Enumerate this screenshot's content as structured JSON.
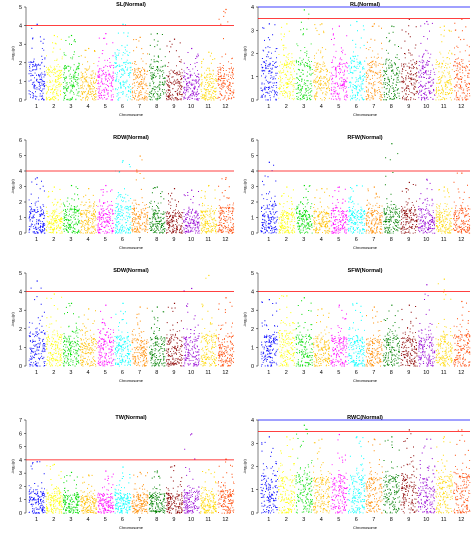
{
  "chromosome_colors": [
    "#0000ff",
    "#ffff00",
    "#00dd00",
    "#ffbf00",
    "#ff00ff",
    "#00ffff",
    "#ff8c00",
    "#008000",
    "#8b0000",
    "#9400d3",
    "#ffd700",
    "#ff4500"
  ],
  "threshold_color": "#ff0000",
  "suggestive_color": "#0000ff",
  "chart_data": [
    {
      "type": "scatter",
      "title": "SL(Normal)",
      "xlabel": "Chromosome",
      "ylabel": "-log₁₀(p)",
      "ylim": [
        0,
        5
      ],
      "yticks": [
        0,
        1,
        2,
        3,
        4,
        5
      ],
      "threshold": 4.0,
      "suggestive": null,
      "categories": [
        "1",
        "2",
        "3",
        "4",
        "5",
        "6",
        "7",
        "8",
        "9",
        "10",
        "11",
        "12"
      ],
      "peak_max": [
        4.1,
        3.5,
        3.5,
        2.8,
        3.6,
        4.1,
        3.4,
        3.6,
        3.3,
        2.8,
        2.6,
        4.9
      ],
      "typical_max": [
        2.8,
        2.4,
        2.6,
        2.0,
        2.4,
        2.8,
        2.3,
        2.5,
        2.2,
        2.0,
        1.9,
        2.4
      ]
    },
    {
      "type": "scatter",
      "title": "RL(Normal)",
      "xlabel": "Chromosome",
      "ylabel": "-log₁₀(p)",
      "ylim": [
        0,
        4
      ],
      "yticks": [
        0,
        1,
        2,
        3,
        4
      ],
      "threshold": 3.5,
      "suggestive": 4.0,
      "categories": [
        "1",
        "2",
        "3",
        "4",
        "5",
        "6",
        "7",
        "8",
        "9",
        "10",
        "11",
        "12"
      ],
      "peak_max": [
        3.3,
        3.3,
        3.9,
        3.3,
        3.2,
        3.4,
        3.3,
        3.2,
        3.5,
        3.4,
        3.2,
        3.5
      ],
      "typical_max": [
        2.3,
        2.3,
        2.5,
        2.2,
        2.2,
        2.3,
        2.3,
        2.2,
        2.3,
        2.3,
        2.2,
        2.4
      ]
    },
    {
      "type": "scatter",
      "title": "RDW(Normal)",
      "xlabel": "Chromosome",
      "ylabel": "-log₁₀(p)",
      "ylim": [
        0,
        6
      ],
      "yticks": [
        0,
        1,
        2,
        3,
        4,
        5,
        6
      ],
      "threshold": 4.0,
      "suggestive": null,
      "categories": [
        "1",
        "2",
        "3",
        "4",
        "5",
        "6",
        "7",
        "8",
        "9",
        "10",
        "11",
        "12"
      ],
      "peak_max": [
        3.6,
        3.0,
        3.1,
        2.9,
        3.1,
        4.7,
        5.0,
        3.0,
        2.9,
        2.8,
        3.1,
        3.6
      ],
      "typical_max": [
        2.3,
        2.0,
        2.1,
        2.0,
        2.1,
        2.6,
        2.2,
        2.1,
        1.9,
        1.9,
        2.0,
        2.3
      ]
    },
    {
      "type": "scatter",
      "title": "RFW(Normal)",
      "xlabel": "Chromosome",
      "ylabel": "-log₁₀(p)",
      "ylim": [
        0,
        6
      ],
      "yticks": [
        0,
        1,
        2,
        3,
        4,
        5,
        6
      ],
      "threshold": 4.0,
      "suggestive": null,
      "categories": [
        "1",
        "2",
        "3",
        "4",
        "5",
        "6",
        "7",
        "8",
        "9",
        "10",
        "11",
        "12"
      ],
      "peak_max": [
        4.6,
        3.0,
        3.1,
        2.9,
        3.0,
        3.1,
        3.0,
        5.8,
        3.3,
        3.5,
        3.0,
        3.9
      ],
      "typical_max": [
        2.6,
        2.0,
        2.0,
        1.9,
        2.0,
        2.1,
        2.0,
        2.2,
        2.1,
        2.2,
        2.0,
        2.2
      ]
    },
    {
      "type": "scatter",
      "title": "SDW(Normal)",
      "xlabel": "Chromosome",
      "ylabel": "-log₁₀(p)",
      "ylim": [
        0,
        5
      ],
      "yticks": [
        0,
        1,
        2,
        3,
        4,
        5
      ],
      "threshold": 4.0,
      "suggestive": null,
      "categories": [
        "1",
        "2",
        "3",
        "4",
        "5",
        "6",
        "7",
        "8",
        "9",
        "10",
        "11",
        "12"
      ],
      "peak_max": [
        4.6,
        3.9,
        3.4,
        3.1,
        3.3,
        3.4,
        3.2,
        3.2,
        3.4,
        4.2,
        4.9,
        3.7
      ],
      "typical_max": [
        2.5,
        2.3,
        2.2,
        2.0,
        2.1,
        2.2,
        2.0,
        2.1,
        2.1,
        2.2,
        2.3,
        2.3
      ]
    },
    {
      "type": "scatter",
      "title": "SFW(Normal)",
      "xlabel": "Chromosome",
      "ylabel": "-log₁₀(p)",
      "ylim": [
        0,
        5
      ],
      "yticks": [
        0,
        1,
        2,
        3,
        4,
        5
      ],
      "threshold": 4.0,
      "suggestive": null,
      "categories": [
        "1",
        "2",
        "3",
        "4",
        "5",
        "6",
        "7",
        "8",
        "9",
        "10",
        "11",
        "12"
      ],
      "peak_max": [
        3.6,
        3.8,
        3.7,
        3.1,
        3.3,
        3.4,
        3.2,
        3.3,
        3.3,
        4.4,
        4.7,
        3.5
      ],
      "typical_max": [
        2.3,
        2.4,
        2.3,
        2.0,
        2.1,
        2.2,
        2.0,
        2.1,
        2.1,
        2.2,
        2.3,
        2.3
      ]
    },
    {
      "type": "scatter",
      "title": "TW(Normal)",
      "xlabel": "Chromosome",
      "ylabel": "-log₁₀(p)",
      "ylim": [
        0,
        7
      ],
      "yticks": [
        0,
        1,
        2,
        3,
        4,
        5,
        6,
        7
      ],
      "threshold": 4.0,
      "suggestive": null,
      "categories": [
        "1",
        "2",
        "3",
        "4",
        "5",
        "6",
        "7",
        "8",
        "9",
        "10",
        "11",
        "12"
      ],
      "peak_max": [
        3.9,
        3.7,
        3.1,
        2.9,
        3.2,
        3.5,
        3.1,
        3.2,
        3.6,
        6.0,
        3.3,
        4.1
      ],
      "typical_max": [
        2.2,
        2.2,
        1.9,
        1.8,
        2.0,
        2.1,
        1.9,
        2.0,
        2.1,
        2.3,
        2.0,
        2.4
      ]
    },
    {
      "type": "scatter",
      "title": "RWC(Normal)",
      "xlabel": "Chromosome",
      "ylabel": "-log₁₀(p)",
      "ylim": [
        0,
        4
      ],
      "yticks": [
        0,
        1,
        2,
        3,
        4
      ],
      "threshold": 3.5,
      "suggestive": 4.0,
      "categories": [
        "1",
        "2",
        "3",
        "4",
        "5",
        "6",
        "7",
        "8",
        "9",
        "10",
        "11",
        "12"
      ],
      "peak_max": [
        3.3,
        3.3,
        3.8,
        3.2,
        3.4,
        3.3,
        3.2,
        3.3,
        3.6,
        3.2,
        3.3,
        3.6
      ],
      "typical_max": [
        2.2,
        2.2,
        2.4,
        2.1,
        2.2,
        2.2,
        2.1,
        2.2,
        2.3,
        2.1,
        2.2,
        2.3
      ]
    }
  ]
}
